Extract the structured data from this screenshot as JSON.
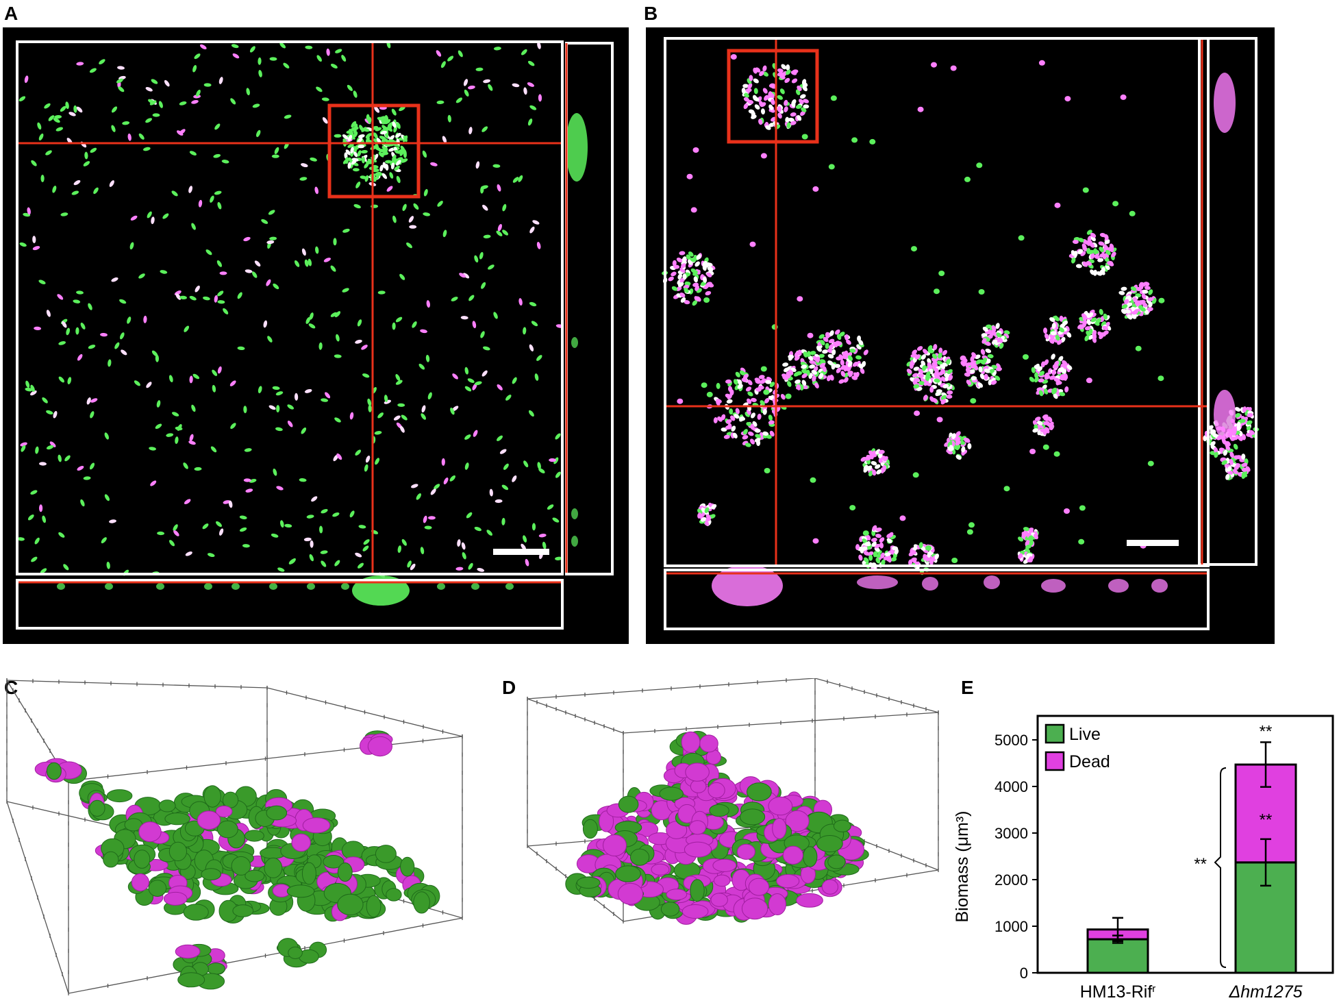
{
  "panels": {
    "a": "A",
    "b": "B",
    "c": "C",
    "d": "D",
    "e": "E"
  },
  "colors": {
    "live": "#4caf50",
    "dead": "#e040e0",
    "live_cell": "#5cf05c",
    "dead_cell": "#ff80ff",
    "crosshair": "#e8311a",
    "frame": "#ffffff",
    "render_live": "#3a9a2a",
    "render_dead": "#d23ad2"
  },
  "chart_data": {
    "type": "bar",
    "stacked": true,
    "categories": [
      "HM13-Rif",
      "Δhm1275"
    ],
    "category_superscripts": [
      "r",
      ""
    ],
    "category_italic": [
      false,
      true
    ],
    "series": [
      {
        "name": "Live",
        "values": [
          720,
          2370
        ],
        "error": [
          80,
          500
        ]
      },
      {
        "name": "Dead",
        "values": [
          210,
          2100
        ],
        "error": [
          250,
          480
        ]
      }
    ],
    "ylabel": "Biomass (μm³)",
    "ylim": [
      0,
      5000
    ],
    "yticks": [
      0,
      1000,
      2000,
      3000,
      4000,
      5000
    ],
    "legend": "top-left",
    "significance": {
      "total_top": "**",
      "dead_segment": "**",
      "live_bracket": "**"
    }
  }
}
